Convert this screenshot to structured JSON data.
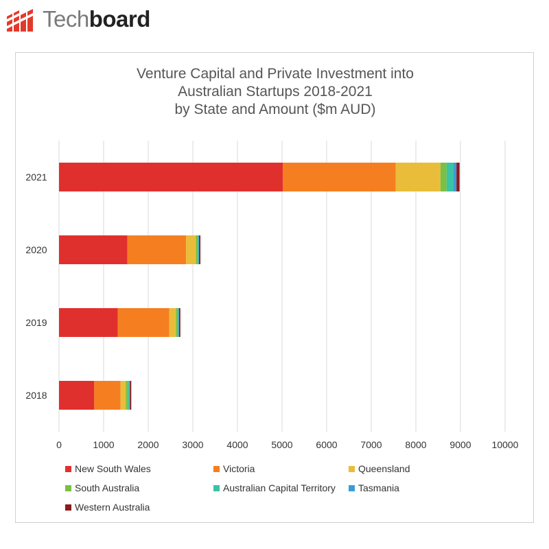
{
  "logo": {
    "text_light": "Tech",
    "text_bold": "board",
    "color": "#e23a2a"
  },
  "chart_data": {
    "type": "bar",
    "orientation": "horizontal",
    "stacked": true,
    "title_lines": [
      "Venture Capital and Private Investment into",
      "Australian Startups 2018-2021",
      "by State and Amount ($m AUD)"
    ],
    "categories": [
      "2021",
      "2020",
      "2019",
      "2018"
    ],
    "xlim": [
      0,
      10000
    ],
    "xticks": [
      0,
      1000,
      2000,
      3000,
      4000,
      5000,
      6000,
      7000,
      8000,
      9000,
      10000
    ],
    "grid": true,
    "legend_position": "bottom",
    "series": [
      {
        "name": "New South Wales",
        "color": "#e0302e",
        "values": [
          5020,
          1530,
          1320,
          790
        ]
      },
      {
        "name": "Victoria",
        "color": "#f57f20",
        "values": [
          2530,
          1320,
          1150,
          590
        ]
      },
      {
        "name": "Queensland",
        "color": "#e9bd3a",
        "values": [
          1000,
          220,
          150,
          120
        ]
      },
      {
        "name": "South Australia",
        "color": "#7cbf45",
        "values": [
          140,
          40,
          40,
          50
        ]
      },
      {
        "name": "Australian Capital Territory",
        "color": "#39c3a7",
        "values": [
          150,
          20,
          20,
          30
        ]
      },
      {
        "name": "Tasmania",
        "color": "#3d9bd6",
        "values": [
          70,
          10,
          10,
          10
        ]
      },
      {
        "name": "Western Australia",
        "color": "#8b1a1a",
        "values": [
          70,
          30,
          30,
          30
        ]
      }
    ]
  }
}
